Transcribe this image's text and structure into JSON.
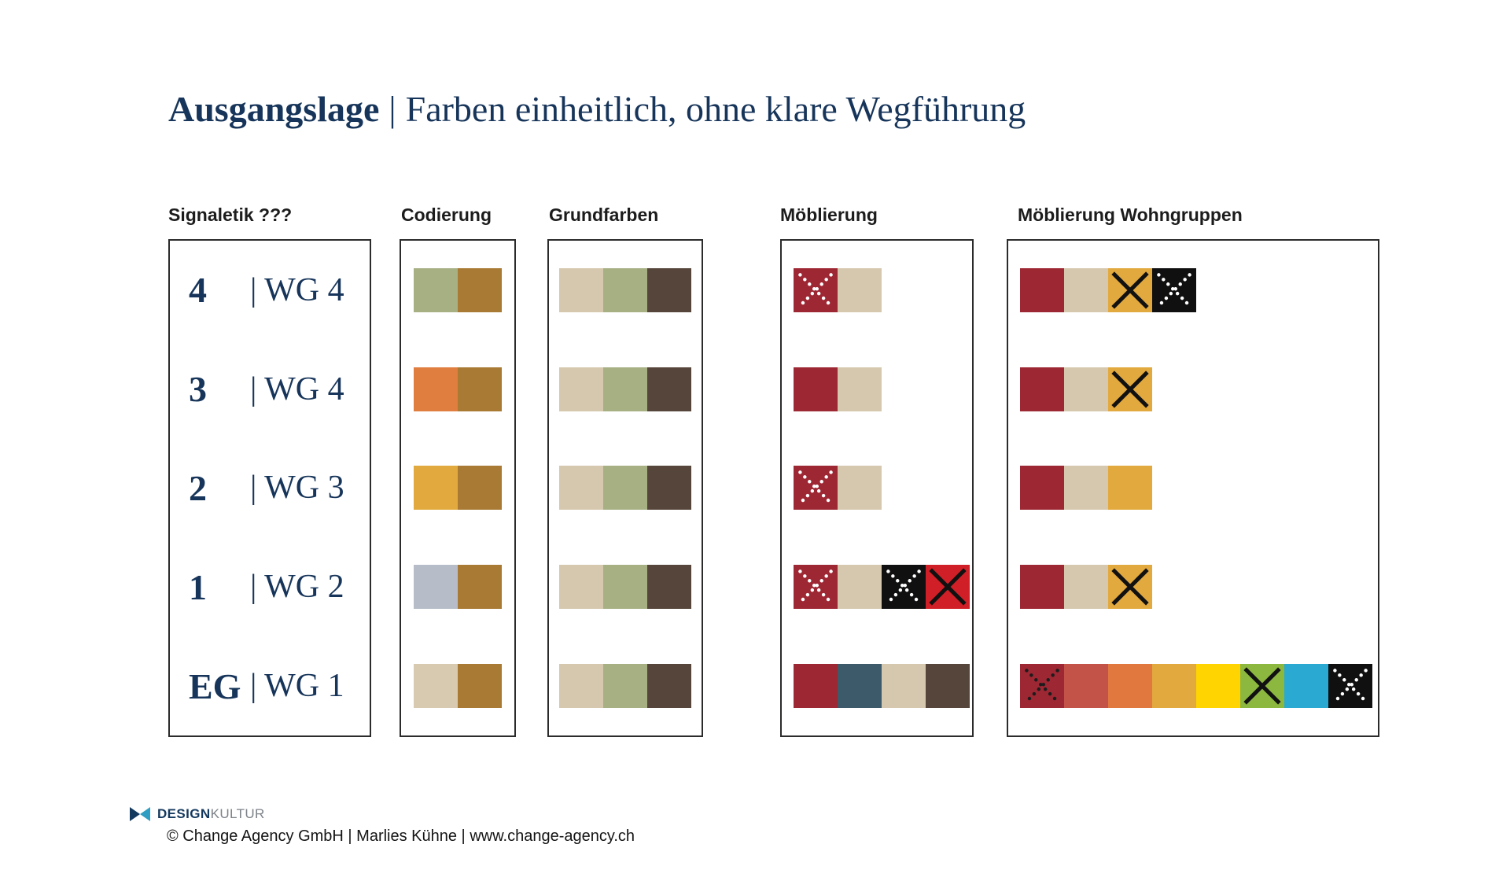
{
  "title": {
    "lead": "Ausgangslage",
    "sep": "|",
    "rest": "Farben einheitlich, ohne klare Wegführung"
  },
  "signaletik": {
    "header": "Signaletik ???",
    "rows": [
      {
        "floor": "4",
        "label": "| WG 4"
      },
      {
        "floor": "3",
        "label": "| WG 4"
      },
      {
        "floor": "2",
        "label": "| WG 3"
      },
      {
        "floor": "1",
        "label": "| WG 2"
      },
      {
        "floor": "EG",
        "label": "| WG 1"
      }
    ]
  },
  "codierung": {
    "header": "Codierung",
    "rows": [
      [
        {
          "color": "#a6b083",
          "mark": "none"
        },
        {
          "color": "#a87a33",
          "mark": "none"
        }
      ],
      [
        {
          "color": "#df7e3f",
          "mark": "none"
        },
        {
          "color": "#a87a33",
          "mark": "none"
        }
      ],
      [
        {
          "color": "#e2a93e",
          "mark": "none"
        },
        {
          "color": "#a87a33",
          "mark": "none"
        }
      ],
      [
        {
          "color": "#b7bdc8",
          "mark": "none"
        },
        {
          "color": "#a87a33",
          "mark": "none"
        }
      ],
      [
        {
          "color": "#d8cab1",
          "mark": "none"
        },
        {
          "color": "#a87a33",
          "mark": "none"
        }
      ]
    ]
  },
  "grundfarben": {
    "header": "Grundfarben",
    "rows": [
      [
        {
          "color": "#d6c8ae",
          "mark": "none"
        },
        {
          "color": "#a6b083",
          "mark": "none"
        },
        {
          "color": "#55453a",
          "mark": "none"
        }
      ],
      [
        {
          "color": "#d6c8ae",
          "mark": "none"
        },
        {
          "color": "#a6b083",
          "mark": "none"
        },
        {
          "color": "#55453a",
          "mark": "none"
        }
      ],
      [
        {
          "color": "#d6c8ae",
          "mark": "none"
        },
        {
          "color": "#a6b083",
          "mark": "none"
        },
        {
          "color": "#55453a",
          "mark": "none"
        }
      ],
      [
        {
          "color": "#d6c8ae",
          "mark": "none"
        },
        {
          "color": "#a6b083",
          "mark": "none"
        },
        {
          "color": "#55453a",
          "mark": "none"
        }
      ],
      [
        {
          "color": "#d6c8ae",
          "mark": "none"
        },
        {
          "color": "#a6b083",
          "mark": "none"
        },
        {
          "color": "#55453a",
          "mark": "none"
        }
      ]
    ]
  },
  "moeblierung": {
    "header": "Möblierung",
    "rows": [
      [
        {
          "color": "#9d2733",
          "mark": "x-dotted-white"
        },
        {
          "color": "#d6c8ae",
          "mark": "none"
        }
      ],
      [
        {
          "color": "#9d2733",
          "mark": "none"
        },
        {
          "color": "#d6c8ae",
          "mark": "none"
        }
      ],
      [
        {
          "color": "#9d2733",
          "mark": "x-dotted-white"
        },
        {
          "color": "#d6c8ae",
          "mark": "none"
        }
      ],
      [
        {
          "color": "#9d2733",
          "mark": "x-dotted-white"
        },
        {
          "color": "#d6c8ae",
          "mark": "none"
        },
        {
          "color": "#101010",
          "mark": "x-dotted-white"
        },
        {
          "color": "#d01f26",
          "mark": "x-solid-black"
        }
      ],
      [
        {
          "color": "#9d2733",
          "mark": "none"
        },
        {
          "color": "#3c5a69",
          "mark": "none"
        },
        {
          "color": "#d6c8ae",
          "mark": "none"
        },
        {
          "color": "#55453a",
          "mark": "none"
        }
      ]
    ]
  },
  "wohngruppen": {
    "header": "Möblierung Wohngruppen",
    "rows": [
      [
        {
          "color": "#9d2733",
          "mark": "none"
        },
        {
          "color": "#d6c8ae",
          "mark": "none"
        },
        {
          "color": "#e2a93e",
          "mark": "x-solid-black"
        },
        {
          "color": "#101010",
          "mark": "x-dotted-white"
        }
      ],
      [
        {
          "color": "#9d2733",
          "mark": "none"
        },
        {
          "color": "#d6c8ae",
          "mark": "none"
        },
        {
          "color": "#e2a93e",
          "mark": "x-solid-black"
        }
      ],
      [
        {
          "color": "#9d2733",
          "mark": "none"
        },
        {
          "color": "#d6c8ae",
          "mark": "none"
        },
        {
          "color": "#e2a93e",
          "mark": "none"
        }
      ],
      [
        {
          "color": "#9d2733",
          "mark": "none"
        },
        {
          "color": "#d6c8ae",
          "mark": "none"
        },
        {
          "color": "#e2a93e",
          "mark": "x-solid-black"
        }
      ],
      [
        {
          "color": "#9d2733",
          "mark": "x-dotted-black"
        },
        {
          "color": "#c35248",
          "mark": "none"
        },
        {
          "color": "#e1793f",
          "mark": "none"
        },
        {
          "color": "#e2a93e",
          "mark": "none"
        },
        {
          "color": "#ffd400",
          "mark": "none"
        },
        {
          "color": "#8db83f",
          "mark": "x-solid-black"
        },
        {
          "color": "#2aa9d2",
          "mark": "none"
        },
        {
          "color": "#101010",
          "mark": "x-dotted-white"
        }
      ]
    ]
  },
  "footer": {
    "brand_bold": "DESIGN",
    "brand_light": "KULTUR",
    "copyright": "© Change Agency GmbH | Marlies Kühne | www.change-agency.ch"
  },
  "palette": {
    "navy_text": "#17355a",
    "maroon": "#9d2733",
    "beige": "#d6c8ae",
    "sage": "#a6b083",
    "brown": "#a87a33",
    "dark_brown": "#55453a",
    "gold": "#e2a93e",
    "logo_navy": "#14395f",
    "logo_teal": "#2f9ec2"
  }
}
